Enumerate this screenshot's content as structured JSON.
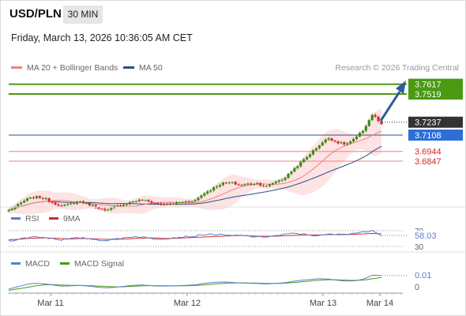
{
  "header": {
    "symbol": "USD/PLN",
    "timeframe": "30 MIN",
    "datetime": "Friday, March 13, 2026 10:36:05 AM CET",
    "copyright": "Research © 2026 Trading Central"
  },
  "colors": {
    "ma20": "#f08080",
    "bollinger_fill": "#fde3e3",
    "ma50": "#2d4f86",
    "resistance": "#4a9a12",
    "support": "#f08080",
    "pivot": "#2e6fd6",
    "current": "#333333",
    "arrow": "#2e5c99",
    "candle_up": "#3d8a1a",
    "candle_down": "#d42a2a",
    "rsi": "#5a7fd0",
    "rsi_ma": "#d42a2a",
    "macd": "#5a7fd0",
    "macd_signal": "#4a9a12"
  },
  "chart_data": [
    {
      "type": "candlestick",
      "title": "USD/PLN",
      "legend": [
        "MA 20 + Bollinger Bands",
        "MA 50"
      ],
      "legend_placement": "top-left",
      "xticks": [
        "Mar 11",
        "Mar 12",
        "Mar 13",
        "Mar 14"
      ],
      "close_path": [
        3.6355,
        3.6405,
        3.6465,
        3.649,
        3.6475,
        3.643,
        3.6395,
        3.642,
        3.6445,
        3.6415,
        3.6385,
        3.6345,
        3.6395,
        3.6415,
        3.6445,
        3.646,
        3.6435,
        3.642,
        3.6415,
        3.643,
        3.6445,
        3.6455,
        3.6525,
        3.6575,
        3.6625,
        3.6635,
        3.6605,
        3.662,
        3.6625,
        3.659,
        3.664,
        3.667,
        3.676,
        3.684,
        3.6925,
        3.701,
        3.708,
        3.7035,
        3.7015,
        3.707,
        3.7165,
        3.732,
        3.721
      ],
      "resistance_levels": [
        3.7617,
        3.7519
      ],
      "current_price": 3.7237,
      "pivot": 3.7108,
      "support_levels": [
        3.6944,
        3.6847
      ]
    },
    {
      "type": "line",
      "title": "RSI",
      "series": [
        {
          "name": "RSI",
          "values": [
            44,
            48,
            52,
            55,
            53,
            50,
            47,
            49,
            52,
            50,
            47,
            45,
            49,
            52,
            55,
            54,
            50,
            49,
            51,
            53,
            55,
            56,
            60,
            61,
            59,
            57,
            58,
            57,
            53,
            55,
            57,
            60,
            63,
            62,
            59,
            57,
            61,
            60,
            62,
            64,
            66,
            72,
            58.03
          ]
        },
        {
          "name": "9MA",
          "values": [
            47,
            48,
            50,
            51,
            52,
            51,
            50,
            49,
            50,
            50,
            49,
            48,
            48,
            49,
            50,
            51,
            52,
            51,
            50,
            51,
            52,
            53,
            54,
            55,
            56,
            57,
            58,
            57,
            56,
            56,
            56,
            57,
            58,
            59,
            59,
            59,
            60,
            60,
            60,
            61,
            62,
            63,
            62
          ]
        }
      ],
      "yticks": [
        "70",
        "30"
      ],
      "last_label": "58.03"
    },
    {
      "type": "line",
      "title": "MACD",
      "series": [
        {
          "name": "MACD",
          "values": [
            -0.002,
            0.0,
            0.002,
            0.003,
            0.0025,
            0.0015,
            0.0005,
            0.0008,
            0.0012,
            0.0006,
            -0.0003,
            -0.001,
            -0.0004,
            0.0004,
            0.0012,
            0.0015,
            0.001,
            0.0006,
            0.0006,
            0.0008,
            0.0012,
            0.0016,
            0.0028,
            0.0036,
            0.004,
            0.0038,
            0.0032,
            0.003,
            0.0028,
            0.0024,
            0.0028,
            0.0034,
            0.0045,
            0.0055,
            0.0062,
            0.0068,
            0.0065,
            0.0055,
            0.0048,
            0.005,
            0.0065,
            0.0098,
            0.0095
          ]
        },
        {
          "name": "MACD Signal",
          "values": [
            -0.003,
            -0.0018,
            -0.0006,
            0.0008,
            0.0016,
            0.0018,
            0.0015,
            0.0012,
            0.0011,
            0.001,
            0.0006,
            0.0002,
            -0.0001,
            0.0,
            0.0004,
            0.0008,
            0.001,
            0.0009,
            0.0008,
            0.0008,
            0.0009,
            0.0011,
            0.0016,
            0.0022,
            0.0028,
            0.0032,
            0.0033,
            0.0032,
            0.0031,
            0.0029,
            0.0028,
            0.003,
            0.0035,
            0.0042,
            0.0049,
            0.0056,
            0.006,
            0.0059,
            0.0056,
            0.0054,
            0.0056,
            0.0068,
            0.0078
          ]
        }
      ],
      "yticks": [
        "0.01",
        "0"
      ]
    }
  ]
}
